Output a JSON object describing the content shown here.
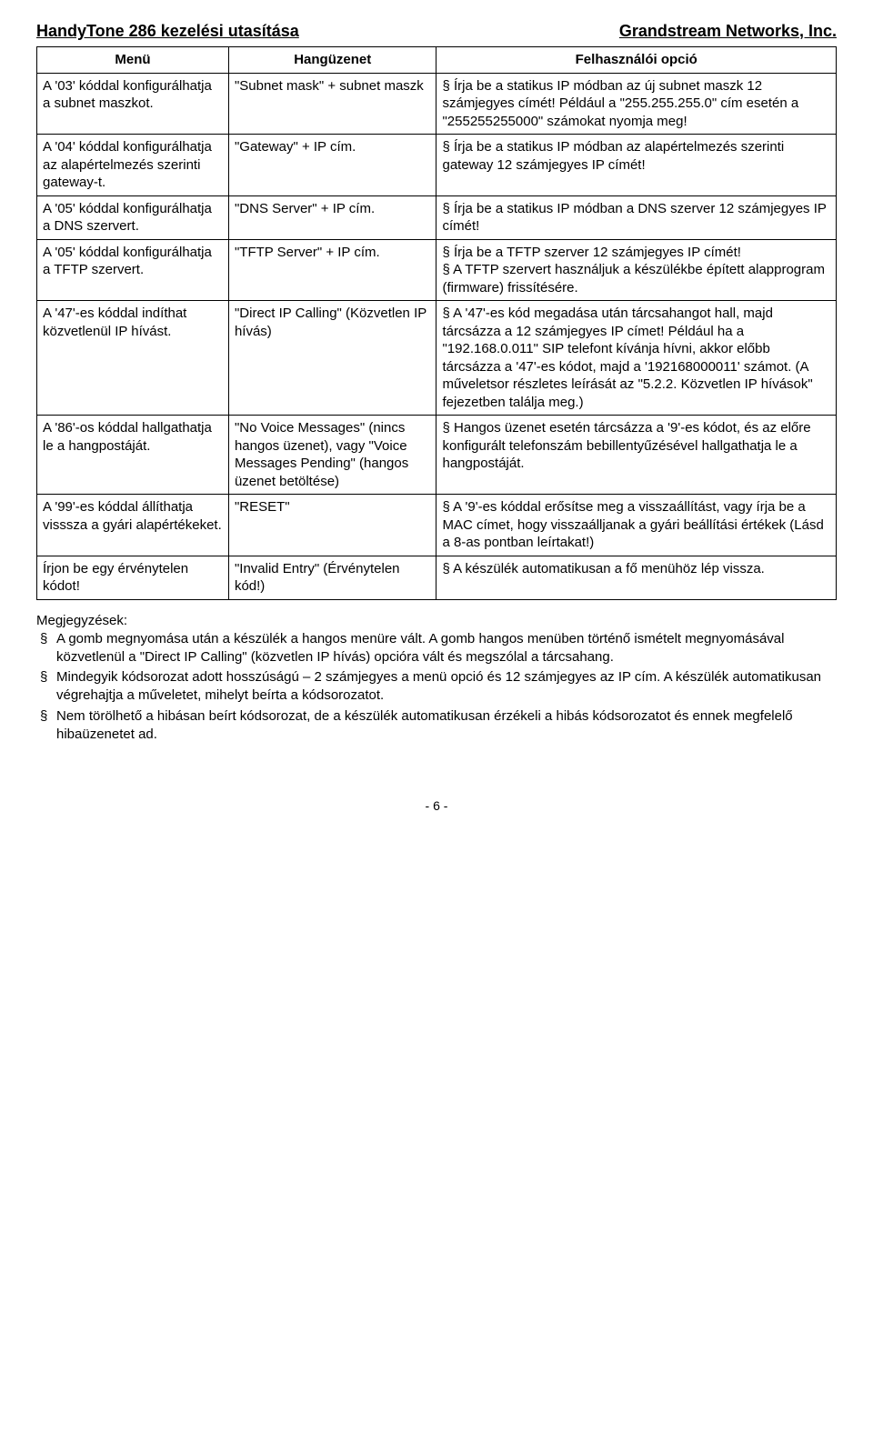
{
  "header": {
    "left": "HandyTone 286 kezelési utasítása",
    "right": "Grandstream Networks, Inc."
  },
  "columns": [
    "Menü",
    "Hangüzenet",
    "Felhasználói opció"
  ],
  "rows": [
    {
      "menu": "A '03' kóddal konfigurálhatja a subnet maszkot.",
      "voice": "\"Subnet mask\" + subnet maszk",
      "option": "§ Írja be a statikus IP módban az új subnet maszk 12 számjegyes címét! Például a \"255.255.255.0\" cím esetén a \"255255255000\" számokat nyomja meg!"
    },
    {
      "menu": "A '04' kóddal konfigurálhatja az alapértelmezés szerinti gateway-t.",
      "voice": "\"Gateway\" + IP cím.",
      "option": "§ Írja be a statikus IP módban az alapértelmezés szerinti gateway 12 számjegyes IP címét!"
    },
    {
      "menu": "A '05' kóddal konfigurálhatja a DNS szervert.",
      "voice": "\"DNS Server\" + IP cím.",
      "option": "§ Írja be a statikus IP módban a DNS szerver 12 számjegyes IP címét!"
    },
    {
      "menu": "A '05' kóddal konfigurálhatja a TFTP szervert.",
      "voice": "\"TFTP Server\" + IP cím.",
      "option": "§ Írja be a TFTP szerver 12 számjegyes IP címét!\n§ A TFTP szervert használjuk a készülékbe épített alapprogram (firmware) frissítésére."
    },
    {
      "menu": "A '47'-es kóddal indíthat közvetlenül IP hívást.",
      "voice": "\"Direct IP Calling\" (Közvetlen IP hívás)",
      "option": "§ A '47'-es kód megadása után tárcsahangot hall, majd tárcsázza a 12 számjegyes IP címet! Például ha a \"192.168.0.011\" SIP telefont kívánja hívni, akkor előbb tárcsázza a '47'-es kódot, majd a '192168000011' számot. (A műveletsor részletes leírását az \"5.2.2. Közvetlen IP hívások\" fejezetben találja meg.)"
    },
    {
      "menu": "A '86'-os kóddal hallgathatja le a hangpostáját.",
      "voice": "\"No Voice Messages\" (nincs hangos üzenet), vagy \"Voice Messages Pending\" (hangos üzenet betöltése)",
      "option": "§ Hangos üzenet esetén tárcsázza a '9'-es kódot, és az előre konfigurált telefonszám bebillentyűzésével hallgathatja le a hangpostáját."
    },
    {
      "menu": "A '99'-es kóddal állíthatja visssza a gyári alapértékeket.",
      "voice": "\"RESET\"",
      "option": "§ A '9'-es kóddal erősítse meg a visszaállítást, vagy írja be a MAC címet, hogy visszaálljanak a gyári beállítási értékek (Lásd a 8-as pontban leírtakat!)"
    },
    {
      "menu": "Írjon be egy érvénytelen kódot!",
      "voice": "\"Invalid Entry\" (Érvénytelen kód!)",
      "option": "§ A készülék automatikusan a fő menühöz lép vissza."
    }
  ],
  "notes": {
    "title": "Megjegyzések:",
    "items": [
      "A gomb megnyomása után a készülék a hangos menüre vált. A gomb hangos menüben történő ismételt megnyomásával közvetlenül a \"Direct IP Calling\" (közvetlen IP hívás) opcióra vált és megszólal a tárcsahang.",
      "Mindegyik kódsorozat adott hosszúságú – 2 számjegyes a menü opció és 12 számjegyes az IP cím. A készülék automatikusan végrehajtja a műveletet, mihelyt beírta a kódsorozatot.",
      "Nem törölhető a hibásan beírt kódsorozat, de a készülék automatikusan érzékeli a hibás kódsorozatot és ennek megfelelő hibaüzenetet ad."
    ]
  },
  "footer": "- 6 -"
}
